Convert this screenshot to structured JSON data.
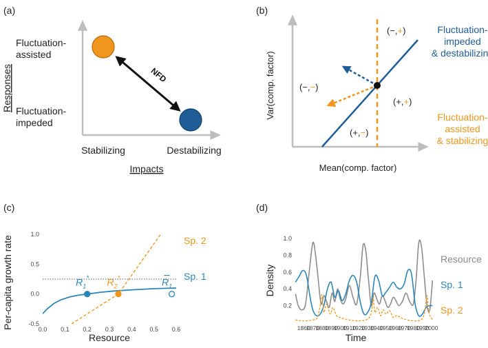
{
  "colors": {
    "blue": "#1f5d97",
    "blue_light": "#2b86b8",
    "orange": "#f0961e",
    "gray": "#8c8c8c",
    "axis": "#b5b5b5",
    "black": "#111111"
  },
  "panel_a": {
    "label": "(a)",
    "y_label_upper": "Fluctuation-\nassisted",
    "y_label_lower": "Fluctuation-\nimpeded",
    "axis_title_y": "Responses",
    "x_label_left": "Stabilizing",
    "x_label_right": "Destabilizing",
    "axis_title_x": "Impacts",
    "arrow_label": "NFD"
  },
  "panel_b": {
    "label": "(b)",
    "axis_title_y": "Var(comp. factor)",
    "axis_title_x": "Mean(comp. factor)",
    "line_label_blue": "Fluctuation-\nimpeded\n& destabilizing",
    "line_label_orange": "Fluctuation-\nassisted\n& stabilizing",
    "quadrants": {
      "top": [
        "(−,",
        "+",
        ")"
      ],
      "left": [
        "(−,",
        "−",
        ")"
      ],
      "right": [
        "(+,",
        "+",
        ")"
      ],
      "bottom": [
        "(+,",
        "−",
        ")"
      ]
    }
  },
  "panel_c": {
    "label": "(c)",
    "chart_data": {
      "type": "line",
      "xlabel": "Resource",
      "ylabel": "Per-capita growth rate",
      "xlim": [
        0,
        0.6
      ],
      "ylim": [
        -0.5,
        1.0
      ],
      "x_ticks": [
        "0.0",
        "0.1",
        "0.2",
        "0.3",
        "0.4",
        "0.5",
        "0.6"
      ],
      "y_ticks": [
        "-0.5",
        "0.0",
        "0.5",
        "1.0"
      ],
      "series": [
        {
          "name": "Sp. 1",
          "x": [
            0.0,
            0.02,
            0.05,
            0.08,
            0.12,
            0.16,
            0.2,
            0.26,
            0.32,
            0.4,
            0.5,
            0.6
          ],
          "y": [
            -0.33,
            -0.25,
            -0.16,
            -0.1,
            -0.05,
            -0.02,
            0.0,
            0.03,
            0.05,
            0.07,
            0.09,
            0.1
          ]
        },
        {
          "name": "Sp. 2",
          "x": [
            0.13,
            0.34,
            0.53
          ],
          "y": [
            -0.5,
            0.0,
            1.0
          ]
        }
      ],
      "points": [
        {
          "label_main": "R",
          "label_sub": "1",
          "label_sup": "*",
          "x": 0.2,
          "y": 0.0,
          "series": "Sp. 1",
          "filled": true
        },
        {
          "label_main": "R",
          "label_sub": "2",
          "label_sup": "*",
          "x": 0.34,
          "y": 0.0,
          "series": "Sp. 2",
          "filled": true
        },
        {
          "label_main": "R",
          "label_sub": "1",
          "label_sup": "",
          "x": 0.58,
          "y": 0.0,
          "series": "Sp. 1",
          "filled": false
        }
      ]
    }
  },
  "panel_d": {
    "label": "(d)",
    "chart_data": {
      "type": "line",
      "xlabel": "Time",
      "ylabel": "Density",
      "xlim": [
        1850,
        2003
      ],
      "ylim": [
        0,
        1.05
      ],
      "x_ticks": [
        "1860",
        "1870",
        "1880",
        "1890",
        "1900",
        "1910",
        "1920",
        "1930",
        "1940",
        "1950",
        "1960",
        "1970",
        "1980",
        "1990",
        "2000"
      ],
      "y_ticks": [
        "0.2",
        "0.4",
        "0.6",
        "0.8",
        "1.0"
      ],
      "series": [
        {
          "name": "Resource",
          "x": [
            1851,
            1854,
            1858,
            1862,
            1866,
            1870,
            1873,
            1876,
            1879,
            1882,
            1885,
            1888,
            1891,
            1894,
            1897,
            1900,
            1903,
            1906,
            1910,
            1914,
            1918,
            1922,
            1925,
            1928,
            1931,
            1934,
            1937,
            1940,
            1943,
            1946,
            1949,
            1952,
            1955,
            1958,
            1961,
            1964,
            1968,
            1972,
            1976,
            1980,
            1983,
            1986,
            1989,
            1992,
            1995,
            1998,
            2001
          ],
          "y": [
            0.34,
            0.2,
            0.15,
            0.22,
            0.6,
            0.95,
            0.8,
            0.5,
            0.22,
            0.32,
            0.25,
            0.18,
            0.35,
            0.25,
            0.4,
            0.28,
            0.22,
            0.28,
            0.44,
            0.3,
            0.22,
            0.55,
            0.92,
            0.85,
            0.5,
            0.2,
            0.35,
            0.28,
            0.22,
            0.32,
            0.26,
            0.18,
            0.22,
            0.3,
            0.26,
            0.2,
            0.25,
            0.35,
            0.25,
            0.22,
            0.5,
            0.95,
            0.9,
            0.55,
            0.2,
            0.15,
            0.5
          ]
        },
        {
          "name": "Sp. 1",
          "x": [
            1851,
            1855,
            1859,
            1863,
            1867,
            1870,
            1874,
            1878,
            1882,
            1886,
            1890,
            1894,
            1898,
            1902,
            1906,
            1910,
            1914,
            1918,
            1922,
            1926,
            1930,
            1934,
            1938,
            1942,
            1946,
            1950,
            1954,
            1958,
            1962,
            1966,
            1970,
            1974,
            1978,
            1982,
            1986,
            1990,
            1994,
            1998,
            2001
          ],
          "y": [
            0.48,
            0.55,
            0.62,
            0.56,
            0.3,
            0.15,
            0.08,
            0.1,
            0.2,
            0.4,
            0.48,
            0.3,
            0.38,
            0.26,
            0.34,
            0.5,
            0.56,
            0.48,
            0.24,
            0.1,
            0.12,
            0.24,
            0.55,
            0.5,
            0.32,
            0.36,
            0.42,
            0.48,
            0.42,
            0.4,
            0.46,
            0.62,
            0.58,
            0.22,
            0.08,
            0.1,
            0.18,
            0.2,
            0.2
          ]
        },
        {
          "name": "Sp. 2",
          "x": [
            1851,
            1860,
            1870,
            1875,
            1878,
            1880,
            1882,
            1885,
            1889,
            1892,
            1896,
            1900,
            1905,
            1910,
            1920,
            1930,
            1934,
            1936,
            1938,
            1941,
            1944,
            1947,
            1950,
            1954,
            1958,
            1962,
            1970,
            1980,
            1988,
            1992,
            1995,
            1997,
            2000,
            2002
          ],
          "y": [
            0.03,
            0.02,
            0.03,
            0.06,
            0.2,
            0.33,
            0.12,
            0.22,
            0.1,
            0.18,
            0.08,
            0.06,
            0.04,
            0.03,
            0.02,
            0.04,
            0.12,
            0.3,
            0.12,
            0.18,
            0.08,
            0.15,
            0.1,
            0.14,
            0.06,
            0.08,
            0.04,
            0.02,
            0.03,
            0.1,
            0.32,
            0.12,
            0.05,
            0.03
          ]
        }
      ],
      "legend": [
        "Resource",
        "Sp. 1",
        "Sp. 2"
      ]
    }
  }
}
